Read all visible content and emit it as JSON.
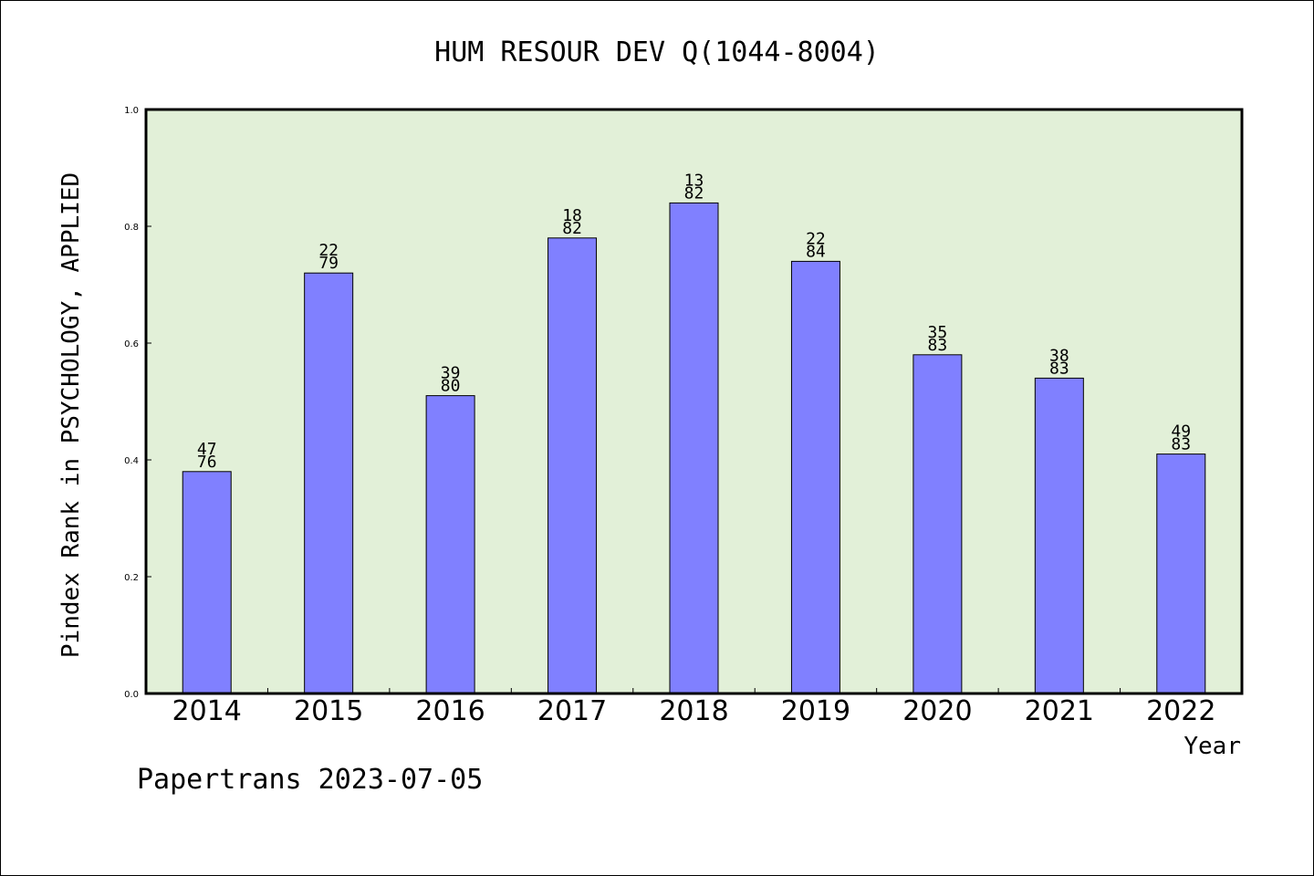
{
  "chart_data": {
    "type": "bar",
    "title": "HUM RESOUR DEV Q(1044-8004)",
    "ylabel": "Pindex Rank in PSYCHOLOGY, APPLIED",
    "xlabel": "Year",
    "ylim": [
      0.0,
      1.0
    ],
    "yticks": [
      "0.0",
      "0.2",
      "0.4",
      "0.6",
      "0.8",
      "1.0"
    ],
    "categories": [
      "2014",
      "2015",
      "2016",
      "2017",
      "2018",
      "2019",
      "2020",
      "2021",
      "2022"
    ],
    "values": [
      0.38,
      0.72,
      0.51,
      0.78,
      0.84,
      0.74,
      0.58,
      0.54,
      0.41
    ],
    "labels_top": [
      "47",
      "22",
      "39",
      "18",
      "13",
      "22",
      "35",
      "38",
      "49"
    ],
    "labels_bottom": [
      "76",
      "79",
      "80",
      "82",
      "82",
      "84",
      "83",
      "83",
      "83"
    ],
    "plot_background": "#e2f0d8",
    "bar_color": "#8080ff",
    "grid": false,
    "legend": "none"
  },
  "footer": "Papertrans 2023-07-05"
}
